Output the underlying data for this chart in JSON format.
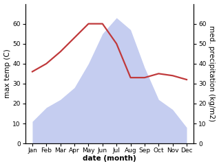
{
  "months": [
    "Jan",
    "Feb",
    "Mar",
    "Apr",
    "May",
    "Jun",
    "Jul",
    "Aug",
    "Sep",
    "Oct",
    "Nov",
    "Dec"
  ],
  "month_positions": [
    0,
    1,
    2,
    3,
    4,
    5,
    6,
    7,
    8,
    9,
    10,
    11
  ],
  "temperature": [
    36,
    40,
    46,
    53,
    60,
    60,
    50,
    33,
    33,
    35,
    34,
    32
  ],
  "precipitation": [
    11,
    18,
    22,
    28,
    40,
    55,
    63,
    57,
    38,
    22,
    17,
    8
  ],
  "temp_color": "#c0393b",
  "precip_color": "#c5cdf0",
  "temp_ylim": [
    0,
    70
  ],
  "precip_ylim": [
    0,
    70
  ],
  "temp_yticks": [
    0,
    10,
    20,
    30,
    40,
    50,
    60
  ],
  "precip_yticks": [
    0,
    10,
    20,
    30,
    40,
    50,
    60
  ],
  "xlabel": "date (month)",
  "ylabel_left": "max temp (C)",
  "ylabel_right": "med. precipitation (kg/m2)",
  "bg_color": "#ffffff",
  "label_fontsize": 7.5,
  "tick_fontsize": 6.5
}
